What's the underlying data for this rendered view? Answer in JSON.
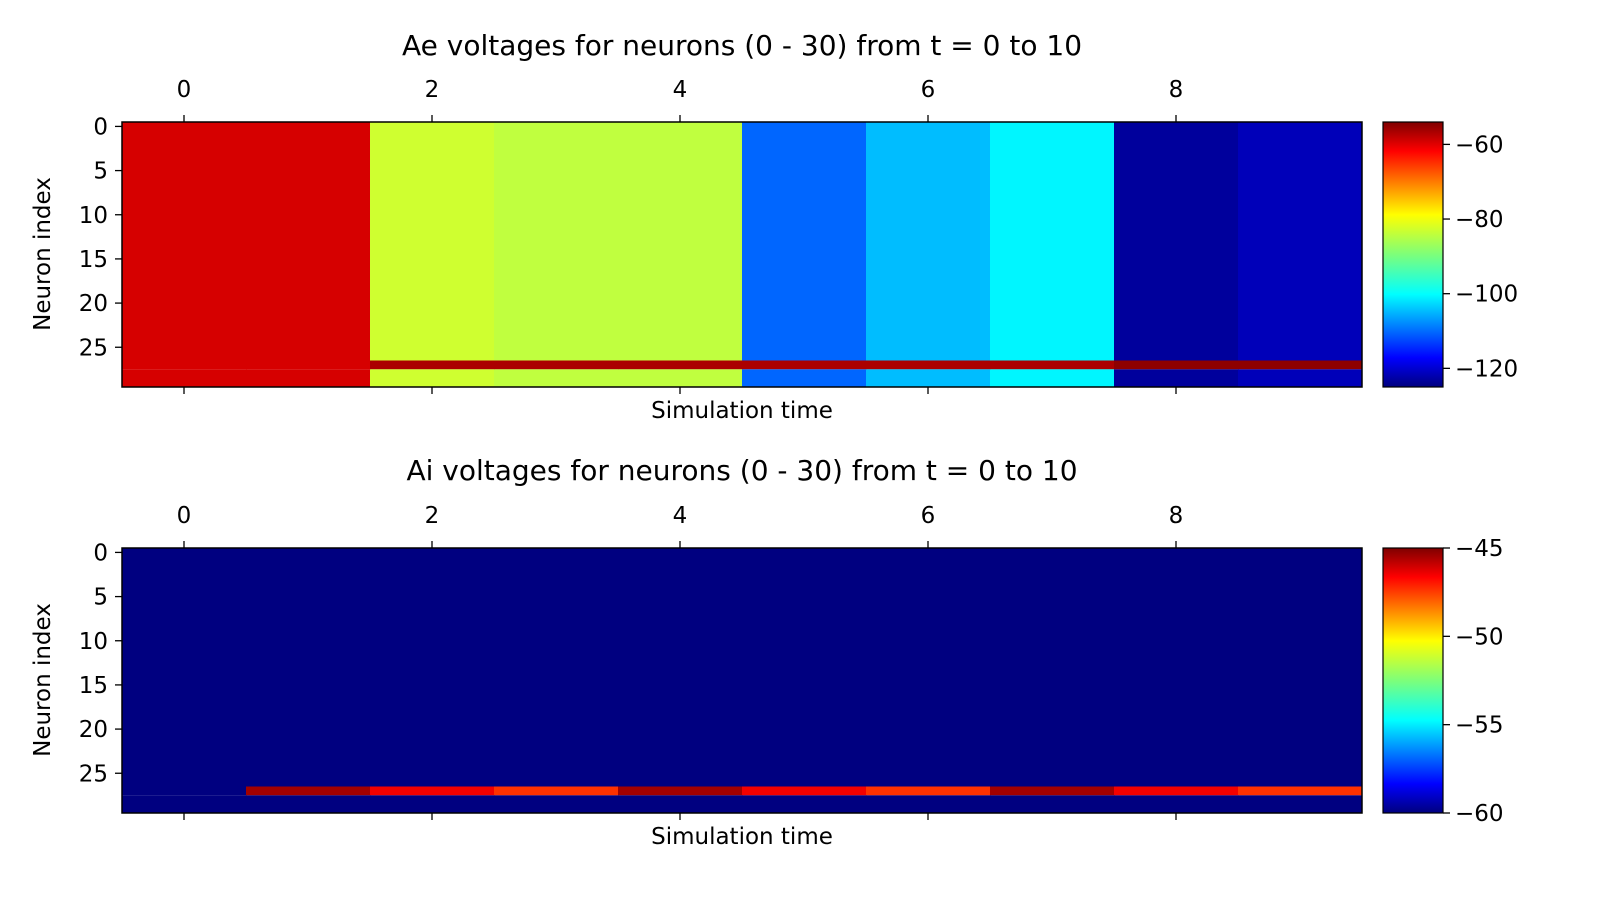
{
  "chart_data": [
    {
      "type": "heatmap",
      "title": "Ae voltages for neurons (0 - 30) from t = 0 to 10",
      "xlabel": "Simulation time",
      "ylabel": "Neuron index",
      "xlim": [
        -0.5,
        9.5
      ],
      "ylim": [
        29.5,
        -0.5
      ],
      "x_ticks": [
        0,
        2,
        4,
        6,
        8
      ],
      "y_ticks": [
        0,
        5,
        10,
        15,
        20,
        25
      ],
      "n_rows": 30,
      "times": [
        0,
        1,
        2,
        3,
        4,
        5,
        6,
        7,
        8,
        9
      ],
      "colormap": "jet",
      "colorbar": {
        "range": [
          -125,
          -54
        ],
        "ticks": [
          -60,
          -80,
          -100,
          -120
        ]
      },
      "column_values": [
        -60,
        -60,
        -84,
        -85,
        -85,
        -109,
        -103,
        -99,
        -123,
        -121
      ],
      "highlight_row": 27,
      "highlight_values": [
        -60,
        -60,
        -57,
        -57,
        -57,
        -57,
        -57,
        -57,
        -55,
        -55
      ]
    },
    {
      "type": "heatmap",
      "title": "Ai voltages for neurons (0 - 30) from t = 0 to 10",
      "xlabel": "Simulation time",
      "ylabel": "Neuron index",
      "xlim": [
        -0.5,
        9.5
      ],
      "ylim": [
        29.5,
        -0.5
      ],
      "x_ticks": [
        0,
        2,
        4,
        6,
        8
      ],
      "y_ticks": [
        0,
        5,
        10,
        15,
        20,
        25
      ],
      "n_rows": 30,
      "times": [
        0,
        1,
        2,
        3,
        4,
        5,
        6,
        7,
        8,
        9
      ],
      "colormap": "jet",
      "colorbar": {
        "range": [
          -60,
          -45
        ],
        "ticks": [
          -45,
          -50,
          -55,
          -60
        ]
      },
      "column_values": [
        -60,
        -60,
        -60,
        -60,
        -60,
        -60,
        -60,
        -60,
        -60,
        -60
      ],
      "highlight_row": 27,
      "highlight_values": [
        -60,
        -45.5,
        -46.7,
        -47.6,
        -45.5,
        -46.7,
        -47.6,
        -45.5,
        -46.7,
        -47.6
      ]
    }
  ]
}
